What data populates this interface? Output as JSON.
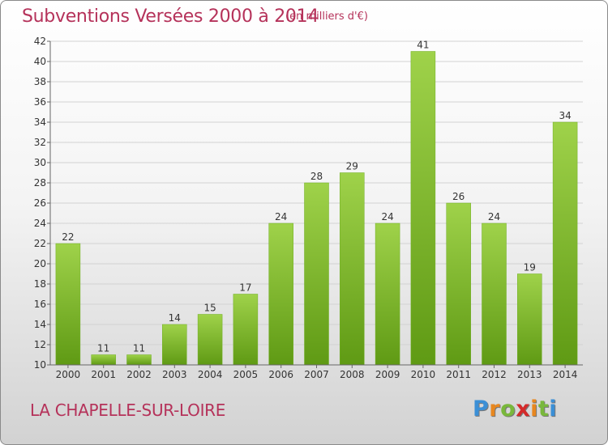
{
  "header": {
    "title": "Subventions Versées 2000 à 2014",
    "unit": "(en milliers d'€)"
  },
  "footer": {
    "place": "LA CHAPELLE-SUR-LOIRE",
    "logo_text": "Proxiti",
    "logo_letters": [
      {
        "char": "P",
        "color": "#3b8fd6"
      },
      {
        "char": "r",
        "color": "#e8871f"
      },
      {
        "char": "o",
        "color": "#79b83b"
      },
      {
        "char": "x",
        "color": "#d42a2a"
      },
      {
        "char": "i",
        "color": "#e8871f"
      },
      {
        "char": "t",
        "color": "#79b83b"
      },
      {
        "char": "i",
        "color": "#3b8fd6"
      }
    ]
  },
  "colors": {
    "title": "#b5325a",
    "bar_light": "#9fd24a",
    "bar_dark": "#5f9a14"
  },
  "chart_data": {
    "type": "bar",
    "title": "Subventions Versées 2000 à 2014",
    "subtitle": "(en milliers d'€)",
    "categories": [
      "2000",
      "2001",
      "2002",
      "2003",
      "2004",
      "2005",
      "2006",
      "2007",
      "2008",
      "2009",
      "2010",
      "2011",
      "2012",
      "2013",
      "2014"
    ],
    "values": [
      22,
      11,
      11,
      14,
      15,
      17,
      24,
      28,
      29,
      24,
      41,
      26,
      24,
      19,
      34
    ],
    "ylim": [
      10,
      42
    ],
    "yticks": [
      10,
      12,
      14,
      16,
      18,
      20,
      22,
      24,
      26,
      28,
      30,
      32,
      34,
      36,
      38,
      40,
      42
    ],
    "grid": true,
    "legend": "none"
  }
}
